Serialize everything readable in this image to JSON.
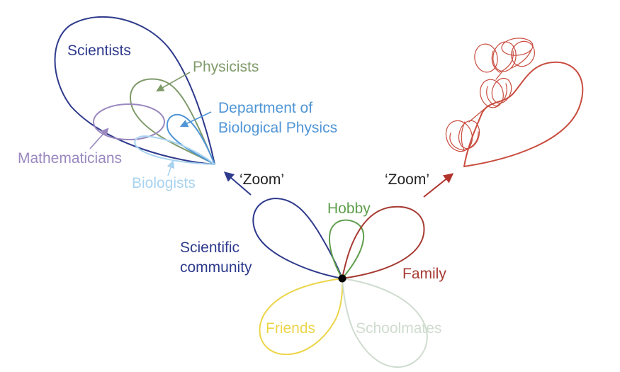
{
  "labels": {
    "scientists": "Scientists",
    "physicists": "Physicists",
    "department_line1": "Department of",
    "department_line2": "Biological Physics",
    "mathematicians": "Mathematicians",
    "biologists": "Biologists",
    "zoom_left": "‘Zoom’",
    "zoom_right": "‘Zoom’",
    "hobby": "Hobby",
    "scientific_line1": "Scientific",
    "scientific_line2": "community",
    "family": "Family",
    "friends": "Friends",
    "schoolmates": "Schoolmates"
  },
  "colors": {
    "scientists": "#2e3a8c",
    "physicists": "#7f9a6a",
    "department": "#4f95d6",
    "mathematicians": "#9a88bf",
    "biologists": "#a9d3f0",
    "zoom_text": "#222222",
    "zoom_arrow_left": "#2e3a8c",
    "zoom_arrow_right": "#b0332d",
    "hobby": "#5f9e4d",
    "scientific": "#2e3a8c",
    "family": "#a63a32",
    "friends": "#ecd54a",
    "schoolmates": "#cfdccf",
    "family_detail": "#c94c3f",
    "center_node": "#000000"
  }
}
